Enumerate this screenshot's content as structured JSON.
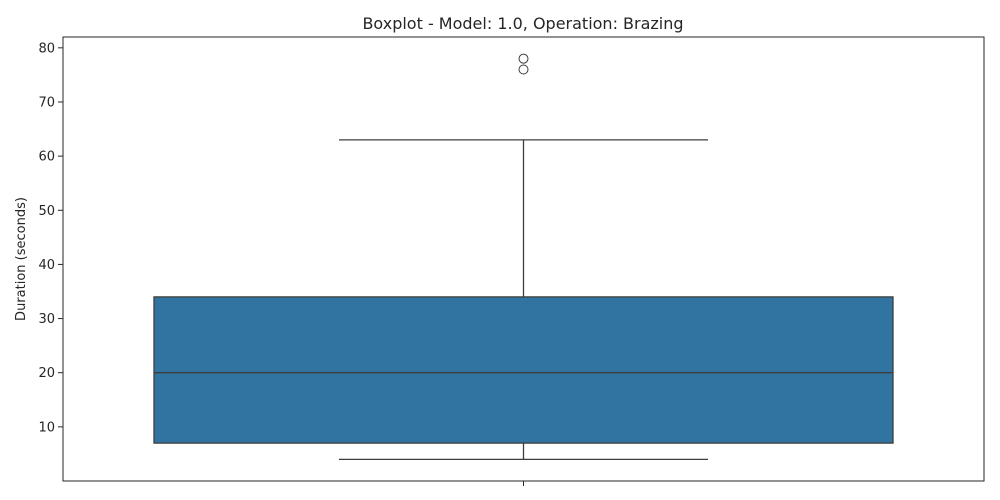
{
  "chart_data": {
    "type": "boxplot",
    "title": "Boxplot - Model: 1.0, Operation: Brazing",
    "xlabel": "",
    "ylabel": "Duration (seconds)",
    "ylim": [
      0,
      82
    ],
    "yticks": [
      10,
      20,
      30,
      40,
      50,
      60,
      70,
      80
    ],
    "grid": false,
    "box": {
      "whisker_low": 4,
      "q1": 7,
      "median": 20,
      "q3": 34,
      "whisker_high": 63,
      "outliers": [
        76,
        78
      ]
    },
    "colors": {
      "box_fill": "#3274a1",
      "line": "#3d3d3d"
    }
  }
}
